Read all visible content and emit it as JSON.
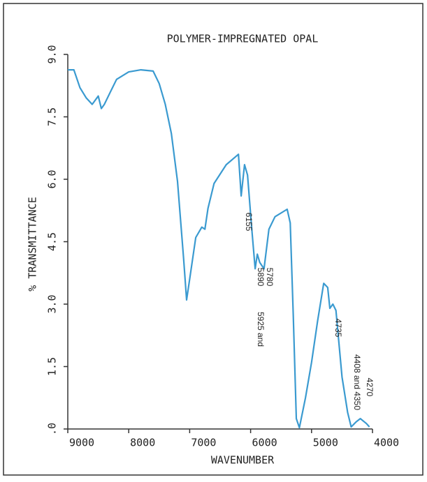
{
  "chart_data": {
    "type": "line",
    "title": "POLYMER-IMPREGNATED OPAL",
    "x_label": "WAVENUMBER",
    "y_label": "% TRANSMITTANCE",
    "xlim": [
      9000,
      4000
    ],
    "xticks": [
      9000,
      8000,
      7000,
      6000,
      5000,
      4000
    ],
    "ylim": [
      0,
      9
    ],
    "yticks": [
      {
        "value": 0,
        "label": ".0"
      },
      1.5,
      {
        "value": 3,
        "label": "3.0"
      },
      4.5,
      {
        "value": 6,
        "label": "6.0"
      },
      7.5,
      {
        "value": 9,
        "label": "9.0"
      }
    ],
    "color": "#3a9ad0",
    "x": [
      9000,
      8900,
      8800,
      8700,
      8600,
      8500,
      8450,
      8400,
      8300,
      8200,
      8000,
      7800,
      7600,
      7500,
      7400,
      7300,
      7200,
      7100,
      7050,
      7000,
      6900,
      6800,
      6750,
      6700,
      6600,
      6400,
      6200,
      6155,
      6100,
      6050,
      5980,
      5925,
      5890,
      5850,
      5780,
      5700,
      5600,
      5400,
      5350,
      5300,
      5250,
      5200,
      5100,
      5000,
      4900,
      4800,
      4735,
      4700,
      4650,
      4600,
      4500,
      4408,
      4350,
      4270,
      4200,
      4100,
      4050
    ],
    "values": [
      8.63,
      8.63,
      8.2,
      7.96,
      7.8,
      8.0,
      7.7,
      7.8,
      8.1,
      8.4,
      8.58,
      8.63,
      8.6,
      8.3,
      7.8,
      7.1,
      5.95,
      4.1,
      3.1,
      3.6,
      4.6,
      4.85,
      4.8,
      5.3,
      5.9,
      6.35,
      6.6,
      5.6,
      6.35,
      6.1,
      4.8,
      3.85,
      4.2,
      4.0,
      3.85,
      4.8,
      5.1,
      5.28,
      4.95,
      2.75,
      0.25,
      0.03,
      0.75,
      1.6,
      2.6,
      3.5,
      3.4,
      2.9,
      3.0,
      2.85,
      1.25,
      0.4,
      0.05,
      0.17,
      0.25,
      0.13,
      0.05
    ],
    "annotations": [
      "6155",
      "5890",
      "5780",
      "5925 and",
      "4735",
      "4408 and 4350",
      "4270"
    ]
  }
}
